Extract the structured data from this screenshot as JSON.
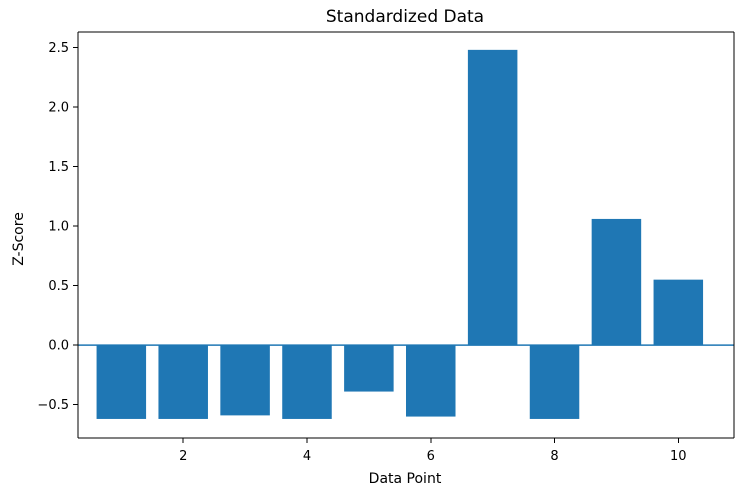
{
  "chart_data": {
    "type": "bar",
    "title": "Standardized Data",
    "xlabel": "Data Point",
    "ylabel": "Z-Score",
    "x": [
      1,
      2,
      3,
      4,
      5,
      6,
      7,
      8,
      9,
      10
    ],
    "values": [
      -0.62,
      -0.62,
      -0.59,
      -0.62,
      -0.39,
      -0.6,
      2.48,
      -0.62,
      1.06,
      0.55
    ],
    "bar_color": "#1f77b4",
    "baseline": {
      "y": 0,
      "color": "#1f77b4"
    },
    "xlim": [
      0.3,
      10.9
    ],
    "ylim": [
      -0.78,
      2.63
    ],
    "xticks": [
      2,
      4,
      6,
      8,
      10
    ],
    "yticks": [
      -0.5,
      0.0,
      0.5,
      1.0,
      1.5,
      2.0,
      2.5
    ],
    "ytick_labels": [
      "−0.5",
      "0.0",
      "0.5",
      "1.0",
      "1.5",
      "2.0",
      "2.5"
    ],
    "grid": false,
    "legend": "none"
  }
}
